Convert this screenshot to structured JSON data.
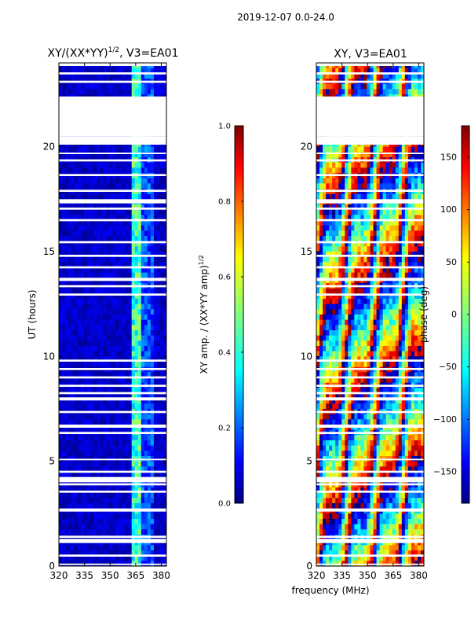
{
  "suptitle": "2019-12-07 0.0-24.0",
  "colors": {
    "blank": "#ffffff",
    "frame": "#000000",
    "jet": [
      "#000080",
      "#0000ff",
      "#0080ff",
      "#00ffff",
      "#80ff80",
      "#ffff00",
      "#ff8000",
      "#ff0000",
      "#800000"
    ]
  },
  "shared": {
    "xlabel": "frequency (MHz)",
    "xlim": [
      320,
      383
    ],
    "ylim": [
      0,
      24
    ],
    "x_ticks": [
      320,
      335,
      350,
      365,
      380
    ],
    "y_ticks": [
      0,
      5,
      10,
      15,
      20
    ],
    "gaps_hours": [
      [
        0.05,
        0.12
      ],
      [
        0.45,
        0.55
      ],
      [
        1.1,
        1.3
      ],
      [
        1.35,
        1.45
      ],
      [
        2.6,
        2.75
      ],
      [
        3.5,
        3.6
      ],
      [
        3.85,
        3.95
      ],
      [
        4.0,
        4.25
      ],
      [
        4.45,
        4.55
      ],
      [
        5.05,
        5.12
      ],
      [
        6.3,
        6.4
      ],
      [
        6.6,
        6.75
      ],
      [
        7.3,
        7.4
      ],
      [
        7.9,
        8.05
      ],
      [
        8.2,
        8.3
      ],
      [
        8.55,
        8.65
      ],
      [
        8.95,
        9.05
      ],
      [
        9.35,
        9.45
      ],
      [
        9.75,
        9.85
      ],
      [
        12.9,
        13.0
      ],
      [
        13.3,
        13.4
      ],
      [
        13.6,
        13.75
      ],
      [
        14.2,
        14.3
      ],
      [
        14.75,
        14.85
      ],
      [
        15.4,
        15.5
      ],
      [
        16.45,
        16.55
      ],
      [
        17.0,
        17.1
      ],
      [
        17.3,
        17.5
      ],
      [
        17.85,
        17.95
      ],
      [
        18.6,
        18.7
      ],
      [
        19.3,
        19.4
      ],
      [
        19.65,
        19.72
      ],
      [
        20.1,
        20.5
      ],
      [
        20.5,
        22.4
      ],
      [
        23.05,
        23.15
      ],
      [
        23.45,
        23.55
      ],
      [
        23.85,
        24.0
      ]
    ]
  },
  "chart_data": [
    {
      "type": "heatmap",
      "title": "XY/(XX*YY)^{1/2}, V3=EA01",
      "title_main": "XY/(XX*YY)",
      "title_sup": "1/2",
      "title_tail": ", V3=EA01",
      "xlabel": "frequency (MHz)",
      "ylabel": "UT (hours)",
      "xlim": [
        320,
        383
      ],
      "ylim": [
        0,
        24
      ],
      "bright_band_mhz": [
        363,
        369
      ],
      "colorbar": {
        "label": "XY amp. / (XX*YY amp)^{1/2}",
        "label_main": "XY amp. / (XX*YY amp)",
        "label_sup": "1/2",
        "range": [
          0.0,
          1.0
        ],
        "ticks": [
          "0.0",
          "0.2",
          "0.4",
          "0.6",
          "0.8",
          "1.0"
        ],
        "tick_values": [
          0.0,
          0.2,
          0.4,
          0.6,
          0.8,
          1.0
        ]
      }
    },
    {
      "type": "heatmap",
      "title": "XY, V3=EA01",
      "xlabel": "frequency (MHz)",
      "ylabel": "",
      "xlim": [
        320,
        383
      ],
      "ylim": [
        0,
        24
      ],
      "colorbar": {
        "label": "phase (deg)",
        "range": [
          -180,
          180
        ],
        "ticks": [
          "−150",
          "−100",
          "−50",
          "0",
          "50",
          "100",
          "150"
        ],
        "tick_values": [
          -150,
          -100,
          -50,
          0,
          50,
          100,
          150
        ]
      }
    }
  ]
}
